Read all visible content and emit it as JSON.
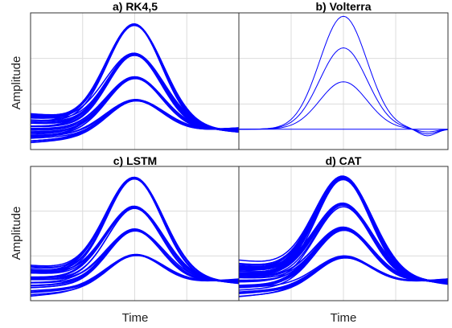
{
  "chart_data": [
    {
      "type": "line",
      "title": "a) RK4,5",
      "xlabel": "",
      "ylabel": "Amplitude",
      "grid": true,
      "color": "#0000ff",
      "groups": [
        {
          "peak": 1.0,
          "baseline": 0.12,
          "spread": 0.05,
          "count": 10
        },
        {
          "peak": 0.7,
          "baseline": 0.06,
          "spread": 0.05,
          "count": 10
        },
        {
          "peak": 0.45,
          "baseline": -0.02,
          "spread": 0.05,
          "count": 10
        },
        {
          "peak": 0.2,
          "baseline": -0.1,
          "spread": 0.04,
          "count": 8
        }
      ]
    },
    {
      "type": "line",
      "title": "b) Volterra",
      "xlabel": "",
      "ylabel": "",
      "grid": true,
      "color": "#0000ff",
      "groups": [
        {
          "peak": 1.0,
          "baseline": 0.0,
          "spread": 0.0,
          "count": 1
        },
        {
          "peak": 0.72,
          "baseline": 0.0,
          "spread": 0.0,
          "count": 1
        },
        {
          "peak": 0.42,
          "baseline": 0.0,
          "spread": 0.0,
          "count": 1
        }
      ]
    },
    {
      "type": "line",
      "title": "c) LSTM",
      "xlabel": "Time",
      "ylabel": "Amplitude",
      "grid": true,
      "color": "#0000ff",
      "groups": [
        {
          "peak": 1.0,
          "baseline": 0.12,
          "spread": 0.05,
          "count": 8
        },
        {
          "peak": 0.7,
          "baseline": 0.06,
          "spread": 0.05,
          "count": 8
        },
        {
          "peak": 0.45,
          "baseline": -0.02,
          "spread": 0.05,
          "count": 8
        },
        {
          "peak": 0.18,
          "baseline": -0.1,
          "spread": 0.04,
          "count": 6
        }
      ]
    },
    {
      "type": "line",
      "title": "d) CAT",
      "xlabel": "Time",
      "ylabel": "",
      "grid": true,
      "color": "#0000ff",
      "groups": [
        {
          "peak": 1.0,
          "baseline": 0.12,
          "spread": 0.08,
          "count": 14
        },
        {
          "peak": 0.72,
          "baseline": 0.06,
          "spread": 0.08,
          "count": 14
        },
        {
          "peak": 0.46,
          "baseline": -0.02,
          "spread": 0.07,
          "count": 12
        },
        {
          "peak": 0.16,
          "baseline": -0.1,
          "spread": 0.05,
          "count": 8
        }
      ]
    }
  ]
}
